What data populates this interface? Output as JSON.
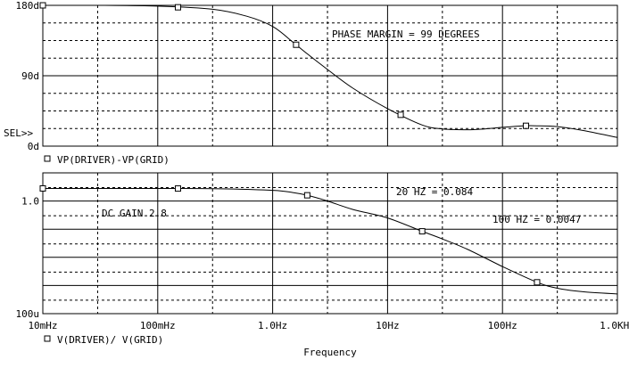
{
  "chart_data": [
    {
      "type": "line",
      "y_scale": "linear",
      "x_scale": "log",
      "xlim": [
        0.01,
        1000
      ],
      "ylim": [
        0,
        180
      ],
      "y_ticks": [
        {
          "value": 180,
          "label": "180d"
        },
        {
          "value": 90,
          "label": "90d"
        },
        {
          "value": 0,
          "label": "0d"
        }
      ],
      "cursor_label": "SEL>>",
      "legend": "VP(DRIVER)-VP(GRID)",
      "annotations": [
        "PHASE MARGIN = 99 DEGREES"
      ],
      "grid": true,
      "series": [
        {
          "name": "VP(DRIVER)-VP(GRID)",
          "marker": "square",
          "x": [
            0.01,
            0.03,
            0.1,
            0.3,
            0.6,
            1,
            1.5,
            2,
            3,
            5,
            10,
            20,
            30,
            50,
            70,
            100,
            150,
            200,
            300,
            500,
            1000
          ],
          "values": [
            180,
            180,
            179,
            175,
            166,
            153,
            133,
            118,
            98,
            74,
            48,
            27,
            22,
            21,
            22,
            24,
            26,
            26,
            25,
            20,
            11
          ],
          "marker_x": [
            0.01,
            0.15,
            1.6,
            13,
            160
          ]
        }
      ]
    },
    {
      "type": "line",
      "y_scale": "log",
      "x_scale": "log",
      "xlim": [
        0.01,
        1000
      ],
      "ylim": [
        0.0001,
        10
      ],
      "y_ticks": [
        {
          "value": 1,
          "label": "1.0"
        },
        {
          "value": 0.0001,
          "label": "100u"
        }
      ],
      "x_ticks": [
        {
          "value": 0.01,
          "label": "10mHz"
        },
        {
          "value": 0.1,
          "label": "100mHz"
        },
        {
          "value": 1,
          "label": "1.0Hz"
        },
        {
          "value": 10,
          "label": "10Hz"
        },
        {
          "value": 100,
          "label": "100Hz"
        },
        {
          "value": 1000,
          "label": "1.0KHz"
        }
      ],
      "xlabel": "Frequency",
      "legend": "V(DRIVER)/ V(GRID)",
      "annotations": [
        "DC GAIN 2.8",
        "20 HZ = 0.084",
        "100 HZ = 0.0047"
      ],
      "grid": true,
      "series": [
        {
          "name": "V(DRIVER)/ V(GRID)",
          "marker": "square",
          "x": [
            0.01,
            0.1,
            0.3,
            1,
            1.5,
            2,
            3,
            5,
            10,
            20,
            30,
            50,
            100,
            200,
            300,
            500,
            1000
          ],
          "values": [
            2.8,
            2.8,
            2.75,
            2.4,
            2.0,
            1.6,
            1.0,
            0.5,
            0.25,
            0.084,
            0.045,
            0.019,
            0.0047,
            0.0013,
            0.0008,
            0.0006,
            0.0005
          ],
          "marker_x": [
            0.01,
            0.15,
            2,
            20,
            200
          ]
        }
      ]
    }
  ]
}
